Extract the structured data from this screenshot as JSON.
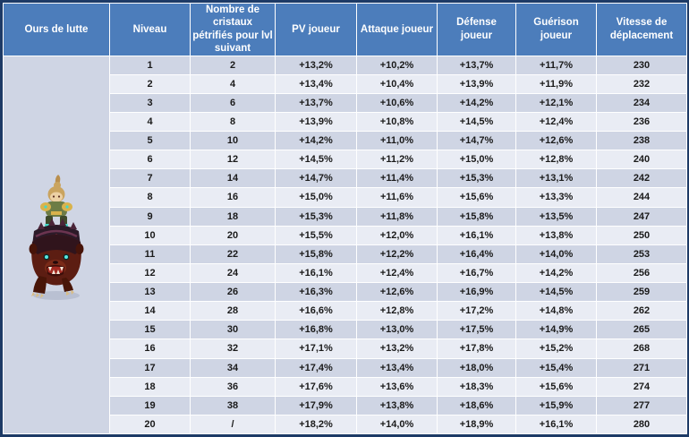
{
  "mount": {
    "name": "Ours de lutte",
    "sprite": "bear-mount-with-rider-sprite"
  },
  "colors": {
    "header_bg": "#4c7dbb",
    "header_text": "#ffffff",
    "outer_border": "#1d3a66",
    "row_odd": "#cfd5e4",
    "row_even": "#e9ecf4",
    "cell_border": "#ffffff",
    "body_text": "#1a1a1a",
    "bear_fur": "#5c1d12",
    "bear_eyes": "#57e8e0"
  },
  "table": {
    "columns": [
      "Ours de lutte",
      "Niveau",
      "Nombre de cristaux pétrifiés pour lvl suivant",
      "PV joueur",
      "Attaque joueur",
      "Défense joueur",
      "Guérison joueur",
      "Vitesse de déplacement"
    ],
    "rows": [
      [
        "1",
        "2",
        "+13,2%",
        "+10,2%",
        "+13,7%",
        "+11,7%",
        "230"
      ],
      [
        "2",
        "4",
        "+13,4%",
        "+10,4%",
        "+13,9%",
        "+11,9%",
        "232"
      ],
      [
        "3",
        "6",
        "+13,7%",
        "+10,6%",
        "+14,2%",
        "+12,1%",
        "234"
      ],
      [
        "4",
        "8",
        "+13,9%",
        "+10,8%",
        "+14,5%",
        "+12,4%",
        "236"
      ],
      [
        "5",
        "10",
        "+14,2%",
        "+11,0%",
        "+14,7%",
        "+12,6%",
        "238"
      ],
      [
        "6",
        "12",
        "+14,5%",
        "+11,2%",
        "+15,0%",
        "+12,8%",
        "240"
      ],
      [
        "7",
        "14",
        "+14,7%",
        "+11,4%",
        "+15,3%",
        "+13,1%",
        "242"
      ],
      [
        "8",
        "16",
        "+15,0%",
        "+11,6%",
        "+15,6%",
        "+13,3%",
        "244"
      ],
      [
        "9",
        "18",
        "+15,3%",
        "+11,8%",
        "+15,8%",
        "+13,5%",
        "247"
      ],
      [
        "10",
        "20",
        "+15,5%",
        "+12,0%",
        "+16,1%",
        "+13,8%",
        "250"
      ],
      [
        "11",
        "22",
        "+15,8%",
        "+12,2%",
        "+16,4%",
        "+14,0%",
        "253"
      ],
      [
        "12",
        "24",
        "+16,1%",
        "+12,4%",
        "+16,7%",
        "+14,2%",
        "256"
      ],
      [
        "13",
        "26",
        "+16,3%",
        "+12,6%",
        "+16,9%",
        "+14,5%",
        "259"
      ],
      [
        "14",
        "28",
        "+16,6%",
        "+12,8%",
        "+17,2%",
        "+14,8%",
        "262"
      ],
      [
        "15",
        "30",
        "+16,8%",
        "+13,0%",
        "+17,5%",
        "+14,9%",
        "265"
      ],
      [
        "16",
        "32",
        "+17,1%",
        "+13,2%",
        "+17,8%",
        "+15,2%",
        "268"
      ],
      [
        "17",
        "34",
        "+17,4%",
        "+13,4%",
        "+18,0%",
        "+15,4%",
        "271"
      ],
      [
        "18",
        "36",
        "+17,6%",
        "+13,6%",
        "+18,3%",
        "+15,6%",
        "274"
      ],
      [
        "19",
        "38",
        "+17,9%",
        "+13,8%",
        "+18,6%",
        "+15,9%",
        "277"
      ],
      [
        "20",
        "/",
        "+18,2%",
        "+14,0%",
        "+18,9%",
        "+16,1%",
        "280"
      ]
    ]
  }
}
